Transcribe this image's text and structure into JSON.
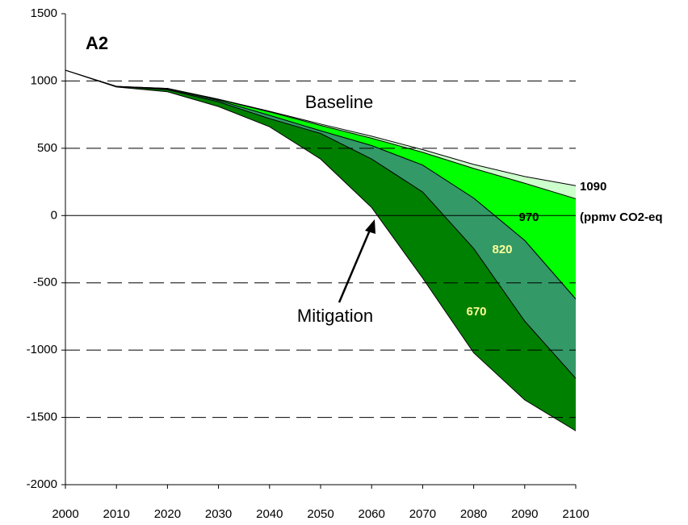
{
  "chart_data": {
    "type": "area",
    "title": "A2",
    "annotations": [
      "Mitigation",
      "(ppmv CO2-eq"
    ],
    "x": [
      2000,
      2010,
      2020,
      2030,
      2040,
      2050,
      2060,
      2070,
      2080,
      2090,
      2100
    ],
    "series": [
      {
        "name": "Baseline",
        "color": "#ccffcc",
        "values": [
          1080,
          960,
          945,
          865,
          775,
          680,
          590,
          490,
          380,
          290,
          222
        ]
      },
      {
        "name": "1090",
        "color": "#00ff00",
        "values": [
          1080,
          960,
          945,
          862,
          770,
          670,
          575,
          470,
          350,
          240,
          125
        ]
      },
      {
        "name": "970",
        "color": "#339966",
        "values": [
          1080,
          960,
          940,
          855,
          745,
          630,
          520,
          375,
          130,
          -185,
          -620
        ]
      },
      {
        "name": "820",
        "color": "#008000",
        "values": [
          1080,
          958,
          935,
          845,
          720,
          610,
          420,
          175,
          -245,
          -785,
          -1210
        ]
      },
      {
        "name": "670",
        "color": "#008000",
        "values": [
          1080,
          955,
          920,
          810,
          660,
          420,
          60,
          -465,
          -1020,
          -1370,
          -1600
        ]
      }
    ],
    "xlim": [
      2000,
      2100
    ],
    "xticks": [
      2000,
      2010,
      2020,
      2030,
      2040,
      2050,
      2060,
      2070,
      2080,
      2090,
      2100
    ],
    "ylim": [
      -2000,
      1500
    ],
    "yticks": [
      -2000,
      -1500,
      -1000,
      -500,
      0,
      500,
      1000,
      1500
    ],
    "grid": true
  }
}
